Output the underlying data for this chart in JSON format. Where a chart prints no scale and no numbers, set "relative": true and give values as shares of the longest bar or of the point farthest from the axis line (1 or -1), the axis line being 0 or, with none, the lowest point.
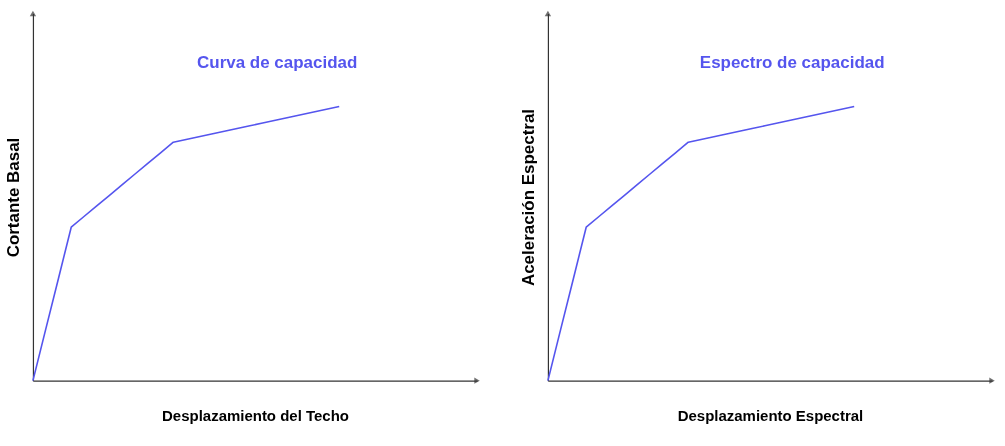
{
  "chart_data": [
    {
      "type": "line",
      "relative": true,
      "title": "Curva de capacidad",
      "xlabel": "Desplazamiento del Techo",
      "ylabel": "Cortante Basal",
      "categories": [
        null,
        null,
        null,
        null,
        null,
        null,
        null,
        null,
        null,
        null,
        null,
        null,
        null,
        null,
        null,
        null,
        null,
        null,
        null,
        null,
        null,
        null,
        null,
        null,
        null
      ],
      "series": [
        {
          "color": "#5555ee",
          "values": [
            0,
            0.187,
            0.373,
            0.56,
            0.599,
            0.638,
            0.676,
            0.715,
            0.754,
            0.793,
            0.831,
            0.87,
            0.88,
            0.89,
            0.9,
            0.91,
            0.92,
            0.93,
            0.94,
            0.95,
            0.96,
            0.97,
            0.98,
            0.99,
            1
          ]
        }
      ],
      "grid": false,
      "marker": "none",
      "line_style": "solid"
    },
    {
      "type": "line",
      "relative": true,
      "title": "Espectro de capacidad",
      "xlabel": "Desplazamiento Espectral",
      "ylabel": "Aceleración Espectral",
      "categories": [
        null,
        null,
        null,
        null,
        null,
        null,
        null,
        null,
        null,
        null,
        null,
        null,
        null,
        null,
        null,
        null,
        null,
        null,
        null,
        null,
        null,
        null,
        null,
        null,
        null
      ],
      "series": [
        {
          "color": "#5555ee",
          "values": [
            0,
            0.187,
            0.373,
            0.56,
            0.599,
            0.638,
            0.676,
            0.715,
            0.754,
            0.793,
            0.831,
            0.87,
            0.88,
            0.89,
            0.9,
            0.91,
            0.92,
            0.93,
            0.94,
            0.95,
            0.96,
            0.97,
            0.98,
            0.99,
            1
          ]
        }
      ],
      "grid": false,
      "marker": "none",
      "line_style": "solid"
    }
  ]
}
